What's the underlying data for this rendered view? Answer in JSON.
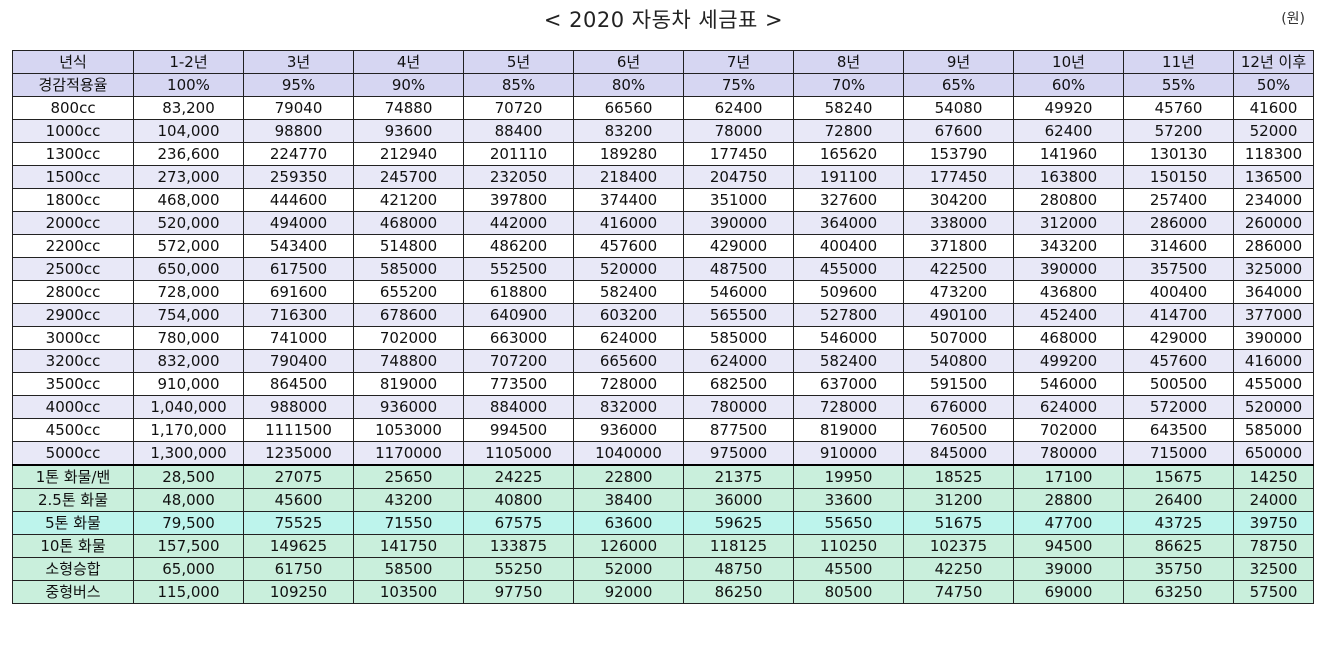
{
  "title": "< 2020 자동차 세금표 >",
  "unit": "(원)",
  "columns": [
    "년식",
    "1-2년",
    "3년",
    "4년",
    "5년",
    "6년",
    "7년",
    "8년",
    "9년",
    "10년",
    "11년",
    "12년 이후"
  ],
  "reduction_row": [
    "경감적용율",
    "100%",
    "95%",
    "90%",
    "85%",
    "80%",
    "75%",
    "70%",
    "65%",
    "60%",
    "55%",
    "50%"
  ],
  "car_rows": [
    [
      "800cc",
      "83,200",
      "79040",
      "74880",
      "70720",
      "66560",
      "62400",
      "58240",
      "54080",
      "49920",
      "45760",
      "41600"
    ],
    [
      "1000cc",
      "104,000",
      "98800",
      "93600",
      "88400",
      "83200",
      "78000",
      "72800",
      "67600",
      "62400",
      "57200",
      "52000"
    ],
    [
      "1300cc",
      "236,600",
      "224770",
      "212940",
      "201110",
      "189280",
      "177450",
      "165620",
      "153790",
      "141960",
      "130130",
      "118300"
    ],
    [
      "1500cc",
      "273,000",
      "259350",
      "245700",
      "232050",
      "218400",
      "204750",
      "191100",
      "177450",
      "163800",
      "150150",
      "136500"
    ],
    [
      "1800cc",
      "468,000",
      "444600",
      "421200",
      "397800",
      "374400",
      "351000",
      "327600",
      "304200",
      "280800",
      "257400",
      "234000"
    ],
    [
      "2000cc",
      "520,000",
      "494000",
      "468000",
      "442000",
      "416000",
      "390000",
      "364000",
      "338000",
      "312000",
      "286000",
      "260000"
    ],
    [
      "2200cc",
      "572,000",
      "543400",
      "514800",
      "486200",
      "457600",
      "429000",
      "400400",
      "371800",
      "343200",
      "314600",
      "286000"
    ],
    [
      "2500cc",
      "650,000",
      "617500",
      "585000",
      "552500",
      "520000",
      "487500",
      "455000",
      "422500",
      "390000",
      "357500",
      "325000"
    ],
    [
      "2800cc",
      "728,000",
      "691600",
      "655200",
      "618800",
      "582400",
      "546000",
      "509600",
      "473200",
      "436800",
      "400400",
      "364000"
    ],
    [
      "2900cc",
      "754,000",
      "716300",
      "678600",
      "640900",
      "603200",
      "565500",
      "527800",
      "490100",
      "452400",
      "414700",
      "377000"
    ],
    [
      "3000cc",
      "780,000",
      "741000",
      "702000",
      "663000",
      "624000",
      "585000",
      "546000",
      "507000",
      "468000",
      "429000",
      "390000"
    ],
    [
      "3200cc",
      "832,000",
      "790400",
      "748800",
      "707200",
      "665600",
      "624000",
      "582400",
      "540800",
      "499200",
      "457600",
      "416000"
    ],
    [
      "3500cc",
      "910,000",
      "864500",
      "819000",
      "773500",
      "728000",
      "682500",
      "637000",
      "591500",
      "546000",
      "500500",
      "455000"
    ],
    [
      "4000cc",
      "1,040,000",
      "988000",
      "936000",
      "884000",
      "832000",
      "780000",
      "728000",
      "676000",
      "624000",
      "572000",
      "520000"
    ],
    [
      "4500cc",
      "1,170,000",
      "1111500",
      "1053000",
      "994500",
      "936000",
      "877500",
      "819000",
      "760500",
      "702000",
      "643500",
      "585000"
    ],
    [
      "5000cc",
      "1,300,000",
      "1235000",
      "1170000",
      "1105000",
      "1040000",
      "975000",
      "910000",
      "845000",
      "780000",
      "715000",
      "650000"
    ]
  ],
  "truck_rows": [
    [
      "1톤 화물/밴",
      "28,500",
      "27075",
      "25650",
      "24225",
      "22800",
      "21375",
      "19950",
      "18525",
      "17100",
      "15675",
      "14250"
    ],
    [
      "2.5톤 화물",
      "48,000",
      "45600",
      "43200",
      "40800",
      "38400",
      "36000",
      "33600",
      "31200",
      "28800",
      "26400",
      "24000"
    ],
    [
      "5톤 화물",
      "79,500",
      "75525",
      "71550",
      "67575",
      "63600",
      "59625",
      "55650",
      "51675",
      "47700",
      "43725",
      "39750"
    ],
    [
      "10톤 화물",
      "157,500",
      "149625",
      "141750",
      "133875",
      "126000",
      "118125",
      "110250",
      "102375",
      "94500",
      "86625",
      "78750"
    ],
    [
      "소형승합",
      "65,000",
      "61750",
      "58500",
      "55250",
      "52000",
      "48750",
      "45500",
      "42250",
      "39000",
      "35750",
      "32500"
    ],
    [
      "중형버스",
      "115,000",
      "109250",
      "103500",
      "97750",
      "92000",
      "86250",
      "80500",
      "74750",
      "69000",
      "63250",
      "57500"
    ]
  ]
}
